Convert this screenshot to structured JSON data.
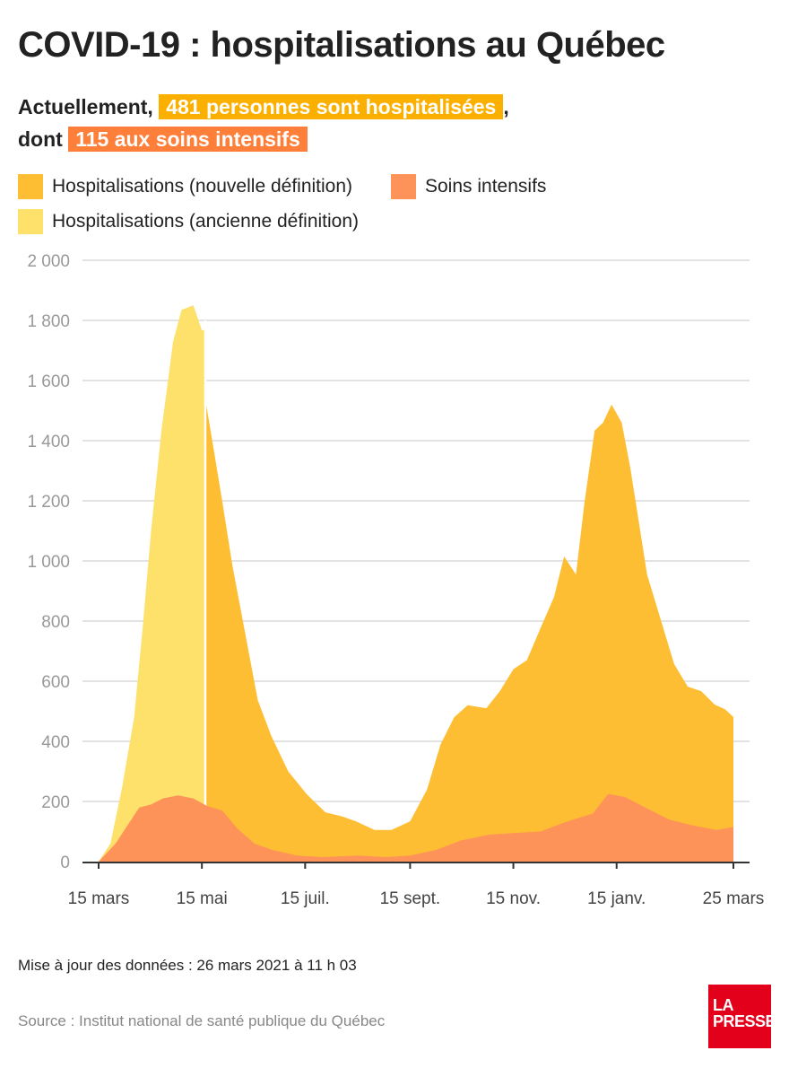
{
  "title": "COVID-19 : hospitalisations au Québec",
  "summary": {
    "line1_prefix": "Actuellement, ",
    "hosp_badge": "481 personnes sont hospitalisées",
    "line1_suffix": ",",
    "line2_prefix": "dont ",
    "icu_badge": "115 aux soins intensifs"
  },
  "colors": {
    "new_def": "#fdbe33",
    "old_def": "#fee16a",
    "icu": "#fe9359",
    "hosp_badge": "#fbb000",
    "icu_badge": "#fd7f3a",
    "logo": "#e3001b"
  },
  "footer": {
    "updated": "Mise à jour des données : 26 mars 2021 à 11 h 03",
    "source": "Source : Institut national de santé publique du Québec",
    "logo": "LA PRESSE"
  },
  "chart_data": {
    "type": "area",
    "ylim": [
      0,
      2000
    ],
    "grid": true,
    "legend_placement": "top-left",
    "y_ticks": [
      "0",
      "200",
      "400",
      "600",
      "800",
      "1 000",
      "1 200",
      "1 400",
      "1 600",
      "1 800",
      "2 000"
    ],
    "y_tick_values": [
      0,
      200,
      400,
      600,
      800,
      1000,
      1200,
      1400,
      1600,
      1800,
      2000
    ],
    "x_ticks": [
      {
        "label": "15 mars",
        "date": "2020-03-15"
      },
      {
        "label": "15 mai",
        "date": "2020-05-15"
      },
      {
        "label": "15 juil.",
        "date": "2020-07-15"
      },
      {
        "label": "15 sept.",
        "date": "2020-09-15"
      },
      {
        "label": "15 nov.",
        "date": "2020-11-15"
      },
      {
        "label": "15 janv.",
        "date": "2021-01-15"
      },
      {
        "label": "25 mars",
        "date": "2021-03-25"
      }
    ],
    "series": [
      {
        "name": "Hospitalisations (ancienne définition)",
        "key": "old_def",
        "x": [
          "2020-03-15",
          "2020-03-22",
          "2020-03-29",
          "2020-04-05",
          "2020-04-10",
          "2020-04-15",
          "2020-04-21",
          "2020-04-28",
          "2020-05-03",
          "2020-05-10",
          "2020-05-15",
          "2020-05-17"
        ],
        "y": [
          0,
          60,
          250,
          480,
          776,
          1100,
          1430,
          1730,
          1835,
          1850,
          1767,
          1767
        ]
      },
      {
        "name": "Hospitalisations (nouvelle définition)",
        "key": "new_def",
        "x": [
          "2020-05-17",
          "2020-05-22",
          "2020-05-27",
          "2020-06-02",
          "2020-06-09",
          "2020-06-17",
          "2020-06-25",
          "2020-07-05",
          "2020-07-16",
          "2020-07-27",
          "2020-08-06",
          "2020-08-14",
          "2020-08-25",
          "2020-09-04",
          "2020-09-15",
          "2020-09-25",
          "2020-10-03",
          "2020-10-11",
          "2020-10-19",
          "2020-10-30",
          "2020-11-07",
          "2020-11-15",
          "2020-11-23",
          "2020-12-01",
          "2020-12-09",
          "2020-12-15",
          "2020-12-22",
          "2020-12-27",
          "2021-01-02",
          "2021-01-07",
          "2021-01-12",
          "2021-01-18",
          "2021-01-23",
          "2021-01-28",
          "2021-02-02",
          "2021-02-10",
          "2021-02-18",
          "2021-02-26",
          "2021-03-06",
          "2021-03-14",
          "2021-03-20",
          "2021-03-25"
        ],
        "y": [
          1540,
          1370,
          1200,
          985,
          776,
          537,
          418,
          300,
          224,
          164,
          150,
          134,
          105,
          105,
          134,
          240,
          390,
          480,
          520,
          510,
          567,
          640,
          670,
          776,
          880,
          1015,
          955,
          1194,
          1433,
          1460,
          1520,
          1460,
          1313,
          1134,
          955,
          806,
          657,
          582,
          567,
          522,
          507,
          481
        ]
      },
      {
        "name": "Soins intensifs",
        "key": "icu",
        "x": [
          "2020-03-15",
          "2020-03-25",
          "2020-04-01",
          "2020-04-08",
          "2020-04-15",
          "2020-04-22",
          "2020-05-01",
          "2020-05-10",
          "2020-05-18",
          "2020-05-27",
          "2020-06-05",
          "2020-06-15",
          "2020-06-25",
          "2020-07-10",
          "2020-07-25",
          "2020-08-15",
          "2020-09-01",
          "2020-09-15",
          "2020-10-01",
          "2020-10-15",
          "2020-11-01",
          "2020-11-15",
          "2020-12-01",
          "2020-12-15",
          "2021-01-01",
          "2021-01-10",
          "2021-01-20",
          "2021-02-01",
          "2021-02-15",
          "2021-03-01",
          "2021-03-15",
          "2021-03-25"
        ],
        "y": [
          0,
          60,
          120,
          180,
          190,
          210,
          220,
          210,
          185,
          170,
          110,
          60,
          40,
          20,
          15,
          20,
          15,
          20,
          40,
          70,
          90,
          95,
          100,
          130,
          160,
          225,
          215,
          180,
          140,
          120,
          105,
          115
        ]
      }
    ]
  }
}
